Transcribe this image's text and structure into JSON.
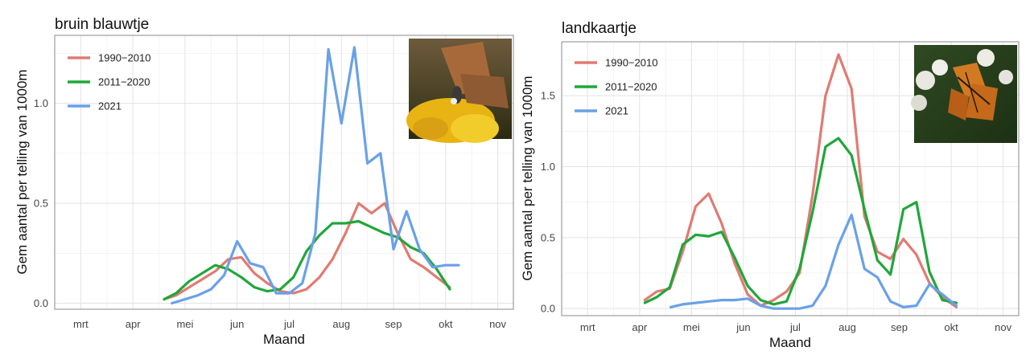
{
  "chart_data": [
    {
      "type": "line",
      "title": "bruin blauwtje",
      "xlabel": "Maand",
      "ylabel": "Gem aantal per telling van 1000m",
      "months": [
        "mrt",
        "apr",
        "mei",
        "jun",
        "jul",
        "aug",
        "sep",
        "okt",
        "nov"
      ],
      "xlim": [
        2.5,
        11.3
      ],
      "ylim": [
        -0.03,
        1.34
      ],
      "y_ticks": [
        "0.0",
        "0.5",
        "1.0"
      ],
      "y_tick_values": [
        0,
        0.5,
        1.0
      ],
      "legend_position": "top-left",
      "photo": "brown butterfly on yellow flower",
      "series": [
        {
          "name": "1990−2010",
          "color": "#e07b72",
          "x": [
            4.6,
            4.83,
            5.08,
            5.33,
            5.58,
            5.83,
            6.08,
            6.33,
            6.58,
            6.83,
            7.08,
            7.33,
            7.58,
            7.83,
            8.08,
            8.33,
            8.58,
            8.83,
            9.08,
            9.33,
            9.58,
            9.83,
            10.08
          ],
          "y": [
            0.02,
            0.04,
            0.08,
            0.12,
            0.16,
            0.22,
            0.23,
            0.15,
            0.1,
            0.06,
            0.05,
            0.07,
            0.13,
            0.22,
            0.35,
            0.5,
            0.45,
            0.5,
            0.35,
            0.22,
            0.18,
            0.13,
            0.08
          ]
        },
        {
          "name": "2011−2020",
          "color": "#1fa73a",
          "x": [
            4.6,
            4.83,
            5.08,
            5.33,
            5.58,
            5.83,
            6.08,
            6.33,
            6.58,
            6.83,
            7.08,
            7.33,
            7.58,
            7.83,
            8.08,
            8.33,
            8.58,
            8.83,
            9.08,
            9.33,
            9.58,
            9.83,
            10.08
          ],
          "y": [
            0.02,
            0.05,
            0.11,
            0.15,
            0.19,
            0.17,
            0.13,
            0.08,
            0.06,
            0.07,
            0.13,
            0.26,
            0.34,
            0.4,
            0.4,
            0.41,
            0.38,
            0.35,
            0.33,
            0.28,
            0.25,
            0.17,
            0.07
          ]
        },
        {
          "name": "2021",
          "color": "#6aa0e8",
          "x": [
            4.75,
            5.0,
            5.25,
            5.5,
            5.75,
            6.0,
            6.25,
            6.5,
            6.75,
            7.0,
            7.25,
            7.5,
            7.75,
            8.0,
            8.25,
            8.5,
            8.75,
            9.0,
            9.25,
            9.5,
            9.75,
            10.0,
            10.25
          ],
          "y": [
            0.0,
            0.02,
            0.04,
            0.07,
            0.14,
            0.31,
            0.2,
            0.18,
            0.05,
            0.05,
            0.1,
            0.35,
            1.27,
            0.9,
            1.28,
            0.7,
            0.75,
            0.27,
            0.46,
            0.27,
            0.18,
            0.19,
            0.19
          ]
        }
      ]
    },
    {
      "type": "line",
      "title": "landkaartje",
      "xlabel": "Maand",
      "ylabel": "Gem aantal per telling van 1000m",
      "months": [
        "mrt",
        "apr",
        "mei",
        "jun",
        "jul",
        "aug",
        "sep",
        "okt",
        "nov"
      ],
      "xlim": [
        2.5,
        11.3
      ],
      "ylim": [
        -0.05,
        1.88
      ],
      "y_ticks": [
        "0.0",
        "0.5",
        "1.0",
        "1.5"
      ],
      "y_tick_values": [
        0,
        0.5,
        1.0,
        1.5
      ],
      "legend_position": "top-left",
      "photo": "orange map butterfly on white flowers",
      "series": [
        {
          "name": "1990−2010",
          "color": "#e07b72",
          "x": [
            4.1,
            4.33,
            4.58,
            4.83,
            5.08,
            5.33,
            5.58,
            5.83,
            6.08,
            6.33,
            6.58,
            6.83,
            7.08,
            7.33,
            7.58,
            7.83,
            8.08,
            8.33,
            8.58,
            8.83,
            9.08,
            9.33,
            9.58,
            9.83,
            10.1
          ],
          "y": [
            0.06,
            0.12,
            0.14,
            0.4,
            0.72,
            0.81,
            0.6,
            0.32,
            0.1,
            0.02,
            0.06,
            0.12,
            0.25,
            0.8,
            1.5,
            1.79,
            1.55,
            0.65,
            0.4,
            0.35,
            0.49,
            0.38,
            0.18,
            0.08,
            0.01
          ]
        },
        {
          "name": "2011−2020",
          "color": "#1fa73a",
          "x": [
            4.1,
            4.33,
            4.58,
            4.83,
            5.08,
            5.33,
            5.58,
            5.83,
            6.08,
            6.33,
            6.58,
            6.83,
            7.08,
            7.33,
            7.58,
            7.83,
            8.08,
            8.33,
            8.58,
            8.83,
            9.08,
            9.33,
            9.58,
            9.83,
            10.1
          ],
          "y": [
            0.04,
            0.08,
            0.15,
            0.45,
            0.52,
            0.51,
            0.54,
            0.36,
            0.16,
            0.06,
            0.03,
            0.05,
            0.28,
            0.68,
            1.14,
            1.2,
            1.08,
            0.7,
            0.34,
            0.24,
            0.7,
            0.75,
            0.26,
            0.06,
            0.04
          ]
        },
        {
          "name": "2021",
          "color": "#6aa0e8",
          "x": [
            4.6,
            4.83,
            5.08,
            5.33,
            5.58,
            5.83,
            6.08,
            6.33,
            6.58,
            6.83,
            7.08,
            7.33,
            7.58,
            7.83,
            8.08,
            8.33,
            8.58,
            8.83,
            9.08,
            9.33,
            9.58,
            9.83,
            10.1
          ],
          "y": [
            0.01,
            0.03,
            0.04,
            0.05,
            0.06,
            0.06,
            0.07,
            0.02,
            0.0,
            0.0,
            0.0,
            0.02,
            0.16,
            0.45,
            0.66,
            0.28,
            0.22,
            0.05,
            0.01,
            0.02,
            0.17,
            0.1,
            0.02
          ]
        }
      ]
    }
  ]
}
